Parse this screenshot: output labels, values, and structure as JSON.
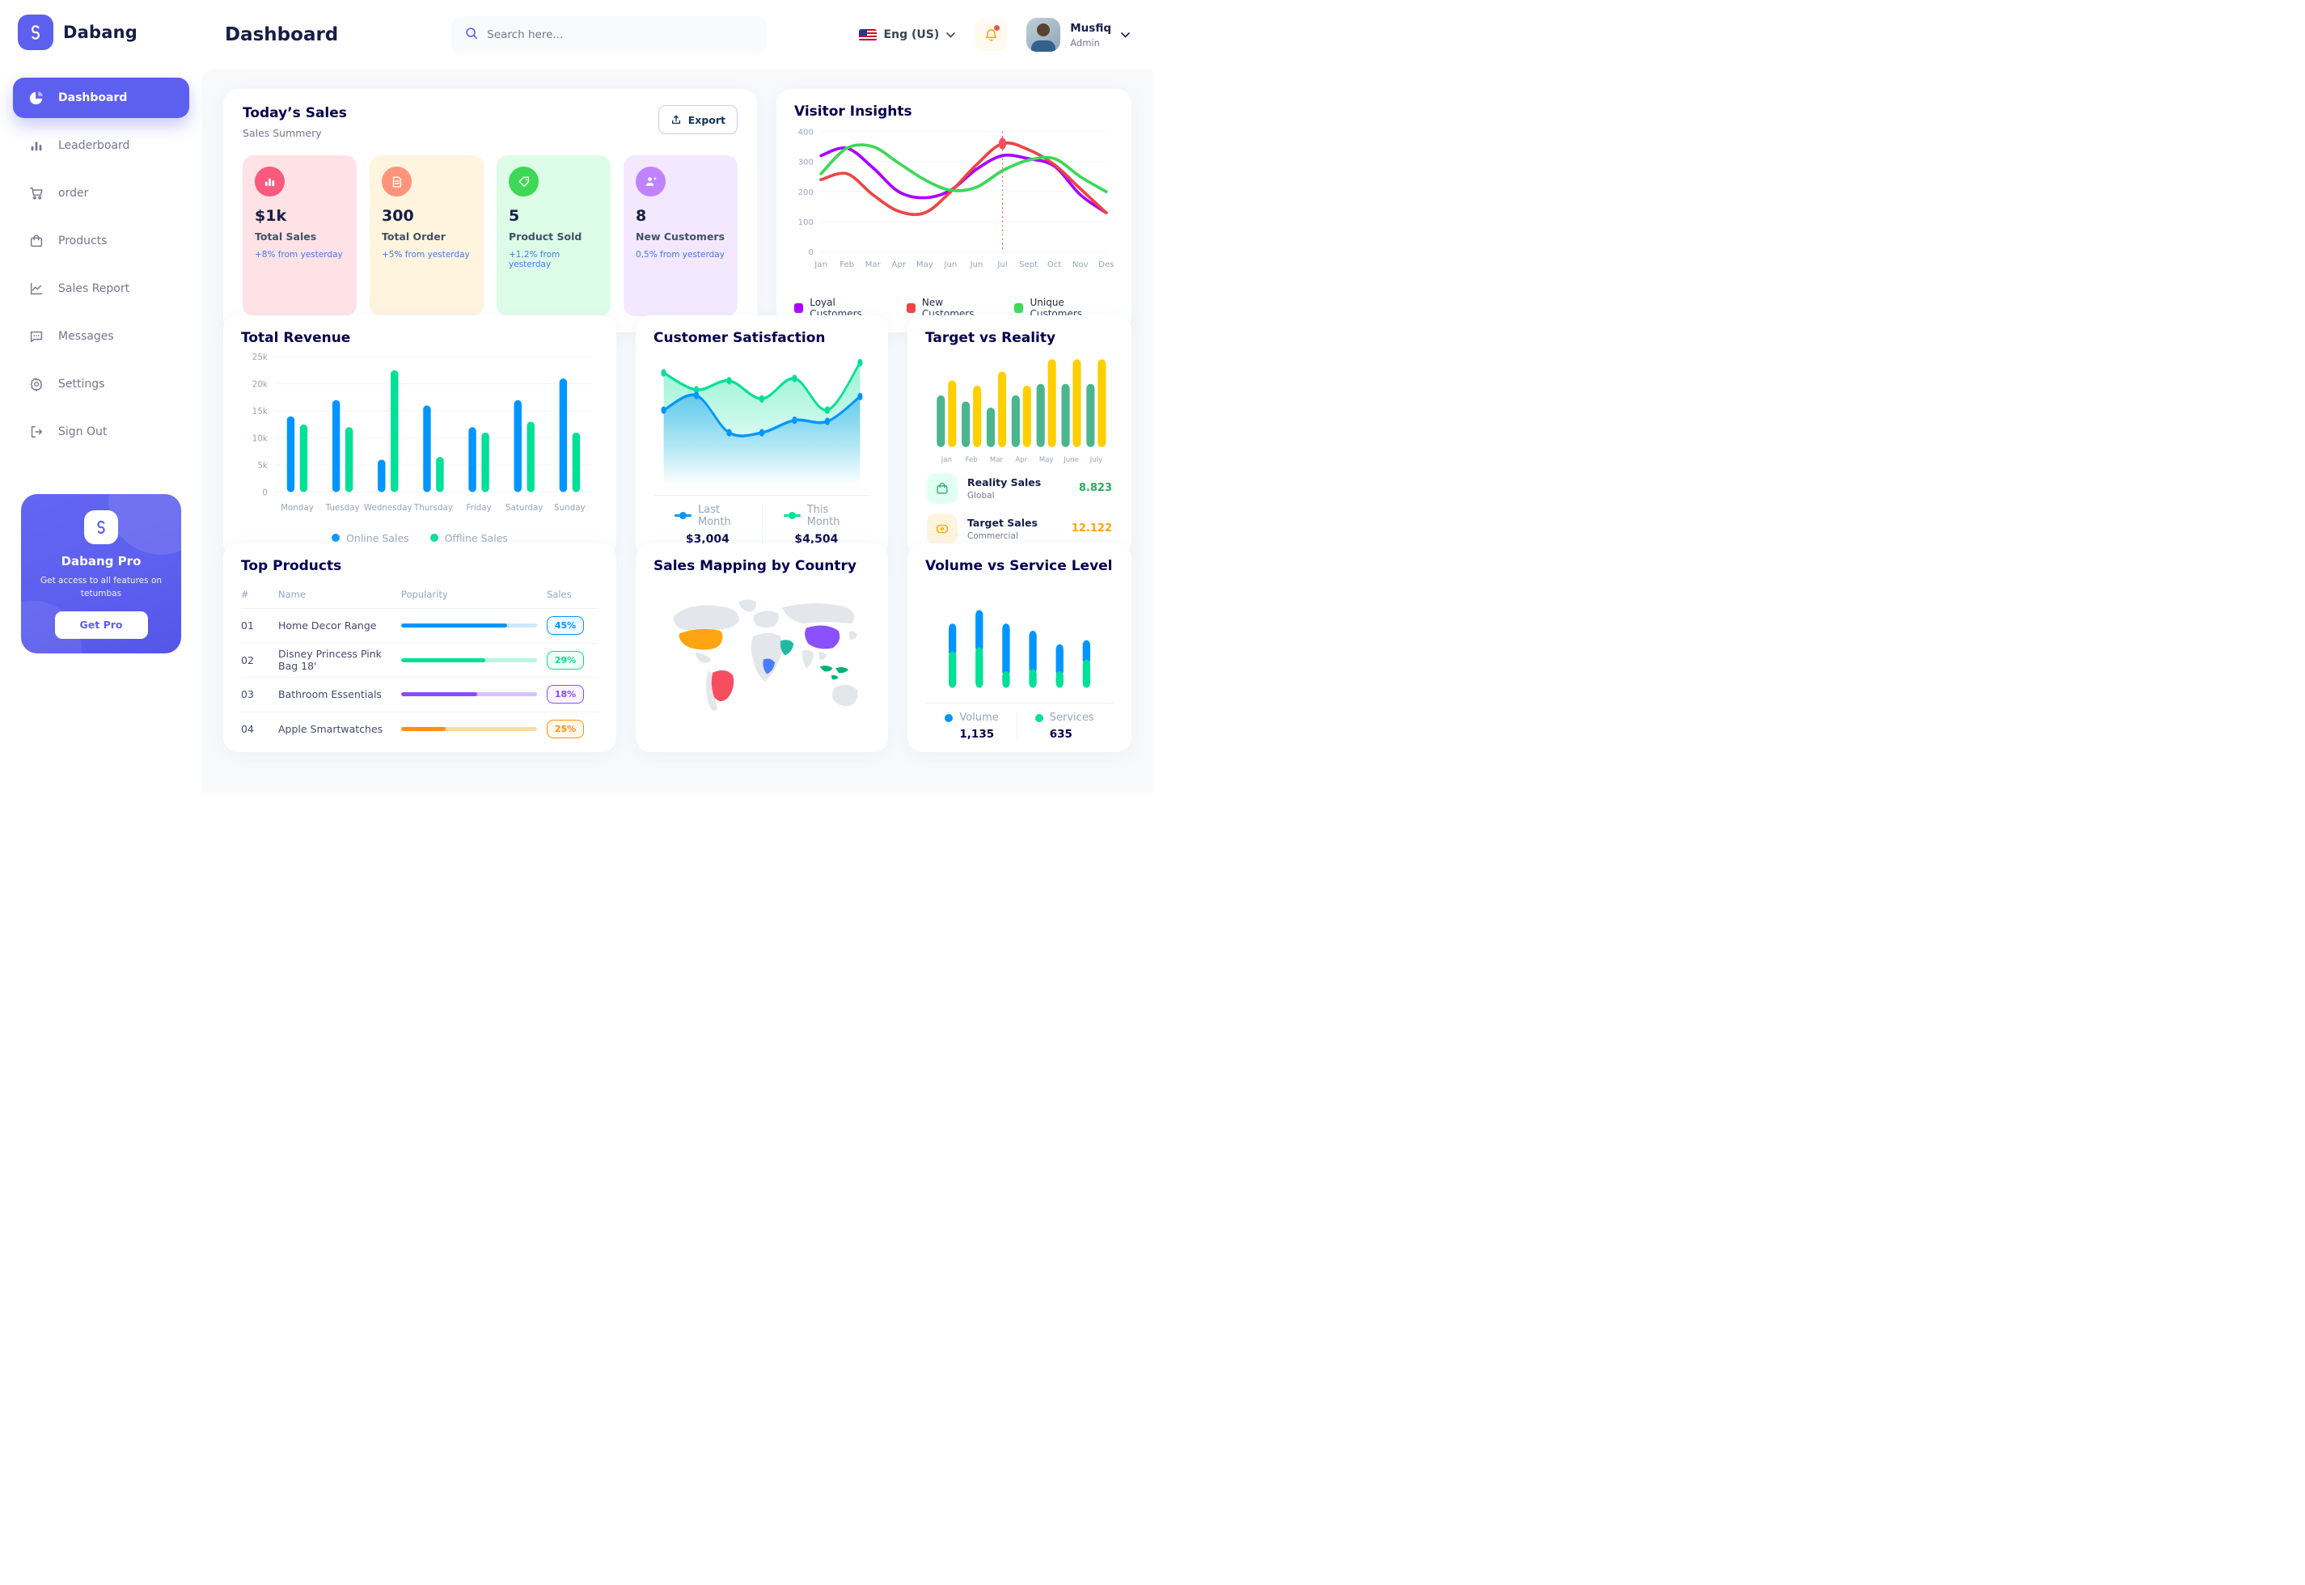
{
  "app": {
    "brand": "Dabang"
  },
  "header": {
    "title": "Dashboard",
    "search_placeholder": "Search here...",
    "language": "Eng (US)",
    "user_name": "Musfiq",
    "user_role": "Admin"
  },
  "sidebar": {
    "items": [
      {
        "label": "Dashboard"
      },
      {
        "label": "Leaderboard"
      },
      {
        "label": "order"
      },
      {
        "label": "Products"
      },
      {
        "label": "Sales Report"
      },
      {
        "label": "Messages"
      },
      {
        "label": "Settings"
      },
      {
        "label": "Sign Out"
      }
    ],
    "promo": {
      "title": "Dabang Pro",
      "text": "Get access to all features on tetumbas",
      "button": "Get Pro"
    }
  },
  "today_sales": {
    "title": "Today’s Sales",
    "subtitle": "Sales Summery",
    "export_label": "Export",
    "cards": [
      {
        "value": "$1k",
        "label": "Total Sales",
        "delta": "+8% from yesterday",
        "bg": "#FFE2E5",
        "icon_bg": "#FA5A7D",
        "icon": "bar-chart-icon"
      },
      {
        "value": "300",
        "label": "Total Order",
        "delta": "+5% from yesterday",
        "bg": "#FFF4DE",
        "icon_bg": "#FF947A",
        "icon": "order-file-icon"
      },
      {
        "value": "5",
        "label": "Product Sold",
        "delta": "+1,2% from yesterday",
        "bg": "#DCFCE7",
        "icon_bg": "#3CD856",
        "icon": "tag-icon"
      },
      {
        "value": "8",
        "label": "New Customers",
        "delta": "0,5% from yesterday",
        "bg": "#F3E8FF",
        "icon_bg": "#BF83FF",
        "icon": "user-plus-icon"
      }
    ]
  },
  "top_products": {
    "title": "Top Products",
    "headers": [
      "#",
      "Name",
      "Popularity",
      "Sales"
    ],
    "rows": [
      {
        "rank": "01",
        "name": "Home Decor Range",
        "popularity": 78,
        "sales": "45%",
        "color": "#0095FF",
        "track": "#CDE7FF",
        "badge_bg": "#F0F9FF"
      },
      {
        "rank": "02",
        "name": "Disney Princess Pink Bag 18'",
        "popularity": 62,
        "sales": "29%",
        "color": "#00E096",
        "track": "#B9F7DC",
        "badge_bg": "#F0FDF4"
      },
      {
        "rank": "03",
        "name": "Bathroom Essentials",
        "popularity": 56,
        "sales": "18%",
        "color": "#884DFF",
        "track": "#D9C2FF",
        "badge_bg": "#FBF5FF"
      },
      {
        "rank": "04",
        "name": "Apple Smartwatches",
        "popularity": 33,
        "sales": "25%",
        "color": "#FF8F0D",
        "track": "#FFD9A3",
        "badge_bg": "#FFF8EC"
      }
    ]
  },
  "chart_data": [
    {
      "id": "visitor_insights",
      "type": "line",
      "title": "Visitor Insights",
      "x": [
        "Jan",
        "Feb",
        "Mar",
        "Apr",
        "May",
        "Jun",
        "Jun",
        "Jul",
        "Sept",
        "Oct",
        "Nov",
        "Des"
      ],
      "ylim": [
        0,
        400
      ],
      "yticks": [
        0,
        100,
        200,
        300,
        400
      ],
      "grid": true,
      "legend_position": "bottom",
      "annotation": {
        "x_index": 7,
        "label": "Jul",
        "marker_series": "New Customers",
        "marker_value": 360
      },
      "series": [
        {
          "name": "Loyal Customers",
          "color": "#A700FF",
          "values": [
            320,
            345,
            280,
            200,
            180,
            205,
            275,
            320,
            310,
            285,
            190,
            130
          ]
        },
        {
          "name": "New Customers",
          "color": "#EF4444",
          "values": [
            240,
            260,
            190,
            135,
            130,
            200,
            290,
            360,
            340,
            290,
            210,
            130
          ]
        },
        {
          "name": "Unique Customers",
          "color": "#3CD856",
          "values": [
            260,
            345,
            350,
            295,
            240,
            205,
            215,
            270,
            305,
            310,
            250,
            200
          ]
        }
      ]
    },
    {
      "id": "total_revenue",
      "type": "bar",
      "title": "Total Revenue",
      "categories": [
        "Monday",
        "Tuesday",
        "Wednesday",
        "Thursday",
        "Friday",
        "Saturday",
        "Sunday"
      ],
      "ylim": [
        0,
        25000
      ],
      "yticks": [
        "0",
        "5k",
        "10k",
        "15k",
        "20k",
        "25k"
      ],
      "grid": true,
      "legend_position": "bottom",
      "series": [
        {
          "name": "Online Sales",
          "color": "#0095FF",
          "values": [
            14000,
            17000,
            6000,
            16000,
            12000,
            17000,
            21000
          ]
        },
        {
          "name": "Offline Sales",
          "color": "#00E096",
          "values": [
            12500,
            12000,
            22500,
            6500,
            11000,
            13000,
            11000
          ]
        }
      ]
    },
    {
      "id": "customer_satisfaction",
      "type": "area",
      "title": "Customer Satisfaction",
      "x": [
        1,
        2,
        3,
        4,
        5,
        6,
        7
      ],
      "legend_position": "bottom",
      "series": [
        {
          "name": "Last Month",
          "color": "#0095FF",
          "total": "$3,004",
          "values": [
            55,
            68,
            35,
            35,
            46,
            45,
            67
          ]
        },
        {
          "name": "This Month",
          "color": "#00E096",
          "total": "$4,504",
          "values": [
            88,
            73,
            81,
            65,
            83,
            55,
            97
          ]
        }
      ]
    },
    {
      "id": "target_vs_reality",
      "type": "bar",
      "title": "Target vs Reality",
      "categories": [
        "Jan",
        "Feb",
        "Mar",
        "Apr",
        "May",
        "June",
        "July"
      ],
      "legend_position": "bottom",
      "series": [
        {
          "name": "Reality Sales",
          "subtitle": "Global",
          "color": "#4AB58E",
          "value_label": "8.823",
          "value_color": "#27AE60",
          "values": [
            59,
            52,
            45,
            59,
            72,
            72,
            72
          ]
        },
        {
          "name": "Target Sales",
          "subtitle": "Commercial",
          "color": "#FFCF00",
          "value_label": "12.122",
          "value_color": "#FFA412",
          "values": [
            76,
            70,
            86,
            70,
            100,
            100,
            100
          ]
        }
      ]
    },
    {
      "id": "volume_vs_service",
      "type": "stacked-bar",
      "title": "Volume vs Service Level",
      "legend_position": "bottom",
      "series": [
        {
          "name": "Volume",
          "color": "#0095FF",
          "total": "1,135",
          "values": [
            27,
            36,
            46,
            37,
            26,
            19
          ]
        },
        {
          "name": "Services",
          "color": "#00E096",
          "total": "635",
          "values": [
            35,
            39,
            16,
            18,
            16,
            27
          ]
        }
      ]
    },
    {
      "id": "sales_mapping",
      "type": "map",
      "title": "Sales Mapping by Country",
      "base_color": "#E3E6EB",
      "countries": [
        {
          "name": "United States",
          "color": "#FFA412"
        },
        {
          "name": "Brazil",
          "color": "#F64E60"
        },
        {
          "name": "Saudi Arabia",
          "color": "#21B8A6"
        },
        {
          "name": "DR Congo",
          "color": "#4A7DFF"
        },
        {
          "name": "China",
          "color": "#8950FC"
        },
        {
          "name": "Indonesia",
          "color": "#00B074"
        }
      ]
    }
  ]
}
